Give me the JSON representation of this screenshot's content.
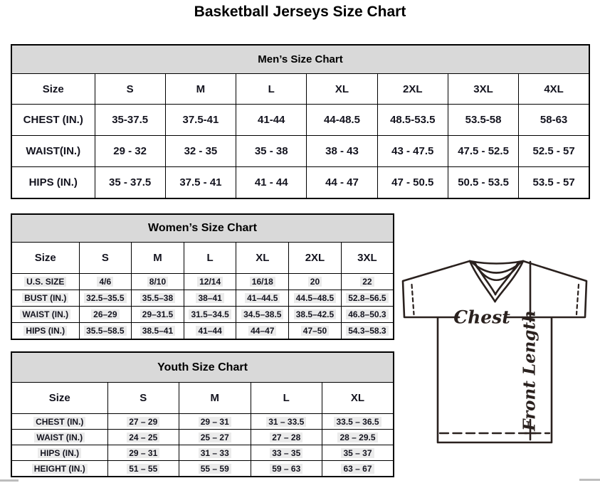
{
  "page_title": "Basketball Jerseys Size Chart",
  "tables": {
    "men": {
      "title": "Men’s Size Chart",
      "header": [
        "Size",
        "S",
        "M",
        "L",
        "XL",
        "2XL",
        "3XL",
        "4XL"
      ],
      "rows": [
        [
          "CHEST (IN.)",
          "35-37.5",
          "37.5-41",
          "41-44",
          "44-48.5",
          "48.5-53.5",
          "53.5-58",
          "58-63"
        ],
        [
          "WAIST(IN.)",
          "29 - 32",
          "32 - 35",
          "35 - 38",
          "38 - 43",
          "43 - 47.5",
          "47.5 - 52.5",
          "52.5 - 57"
        ],
        [
          "HIPS (IN.)",
          "35 - 37.5",
          "37.5 - 41",
          "41 - 44",
          "44 - 47",
          "47 - 50.5",
          "50.5 - 53.5",
          "53.5 - 57"
        ]
      ]
    },
    "women": {
      "title": "Women’s Size Chart",
      "header": [
        "Size",
        "S",
        "M",
        "L",
        "XL",
        "2XL",
        "3XL"
      ],
      "rows": [
        [
          "U.S. SIZE",
          "4/6",
          "8/10",
          "12/14",
          "16/18",
          "20",
          "22"
        ],
        [
          "BUST (IN.)",
          "32.5–35.5",
          "35.5–38",
          "38–41",
          "41–44.5",
          "44.5–48.5",
          "52.8–56.5"
        ],
        [
          "WAIST (IN.)",
          "26–29",
          "29–31.5",
          "31.5–34.5",
          "34.5–38.5",
          "38.5–42.5",
          "46.8–50.3"
        ],
        [
          "HIPS (IN.)",
          "35.5–58.5",
          "38.5–41",
          "41–44",
          "44–47",
          "47–50",
          "54.3–58.3"
        ]
      ]
    },
    "youth": {
      "title": "Youth Size Chart",
      "header": [
        "Size",
        "S",
        "M",
        "L",
        "XL"
      ],
      "rows": [
        [
          "CHEST (IN.)",
          "27 – 29",
          "29 – 31",
          "31 – 33.5",
          "33.5 – 36.5"
        ],
        [
          "WAIST (IN.)",
          "24 – 25",
          "25 – 27",
          "27 – 28",
          "28 – 29.5"
        ],
        [
          "HIPS (IN.)",
          "29 – 31",
          "31 – 33",
          "33 – 35",
          "35 – 37"
        ],
        [
          "HEIGHT (IN.)",
          "51 – 55",
          "55 – 59",
          "59 – 63",
          "63 – 67"
        ]
      ]
    }
  },
  "diagram": {
    "chest_label": "Chest",
    "front_length_label": "Front Length"
  },
  "colors": {
    "band_bg": "#d9d9d9",
    "table_border": "#000000",
    "diagram_line": "#2a211e",
    "value_highlight": "#ebebeb",
    "scrollbar": "#bdbdbd"
  }
}
